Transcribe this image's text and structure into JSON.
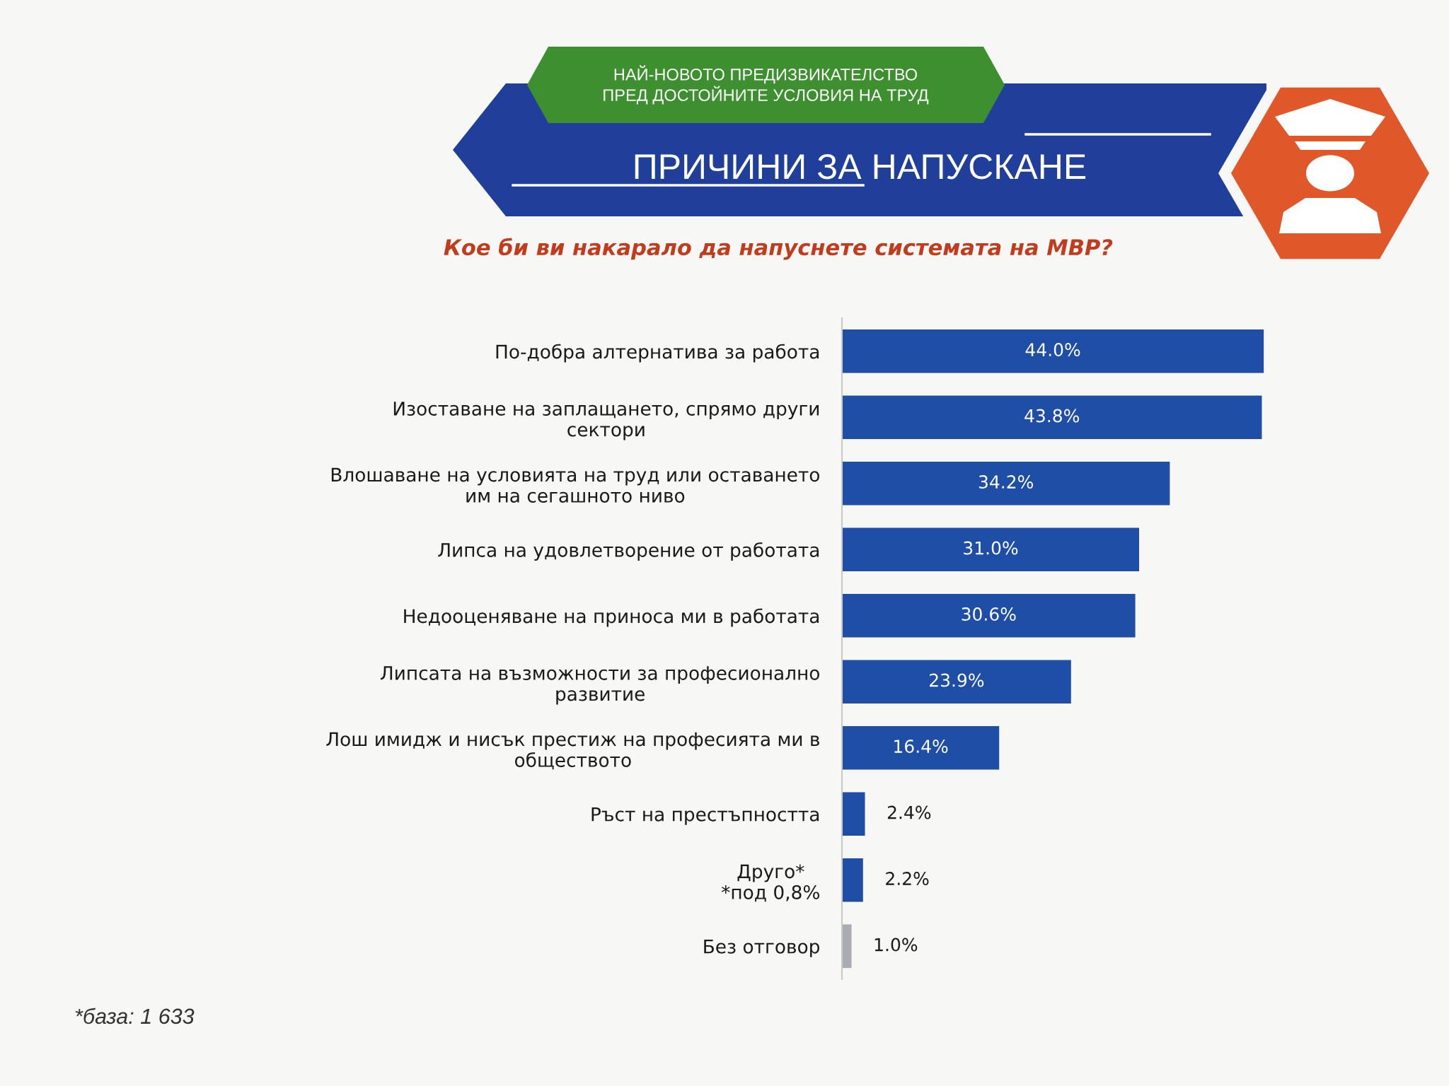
{
  "chart_data": {
    "type": "bar",
    "orientation": "horizontal",
    "title": "ПРИЧИНИ ЗА НАПУСКАНЕ",
    "subtitle": "Кое би ви накарало да напуснете системата на МВР?",
    "annotations": [
      "НАЙ-НОВОТО ПРЕДИЗВИКАТЕЛСТВО\nПРЕД ДОСТОЙНИТЕ УСЛОВИЯ НА ТРУД",
      "*база: 1 633"
    ],
    "categories": [
      "По-добра алтернатива за работа",
      "Изоставане на заплащането, спрямо други\nсектори",
      "Влошаване на условията на труд или оставането\nим на сегашното ниво",
      "Липса на удовлетворение от работата",
      "Недооценяване на приноса ми в работата",
      "Липсата на възможности за професионално\nразвитие",
      "Лош имидж и нисък престиж на професията ми в\nобществото",
      "Ръст на престъпността",
      "Друго*\n*под 0,8%",
      "Без отговор"
    ],
    "values": [
      44.0,
      43.8,
      34.2,
      31.0,
      30.6,
      23.9,
      16.4,
      2.4,
      2.2,
      1.0
    ],
    "value_labels": [
      "44.0%",
      "43.8%",
      "34.2%",
      "31.0%",
      "30.6%",
      "23.9%",
      "16.4%",
      "2.4%",
      "2.2%",
      "1.0%"
    ],
    "colors": [
      "#1f4ea6",
      "#1f4ea6",
      "#1f4ea6",
      "#1f4ea6",
      "#1f4ea6",
      "#1f4ea6",
      "#1f4ea6",
      "#1f4ea6",
      "#1f4ea6",
      "#a9acb0"
    ],
    "tick_labels": "y"
  }
}
